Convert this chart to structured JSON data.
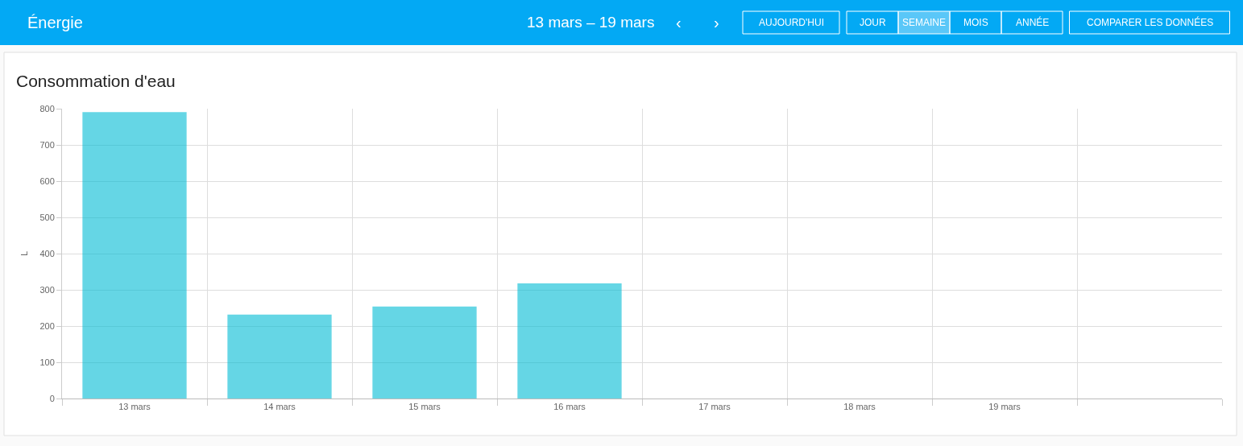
{
  "chart_data": {
    "type": "bar",
    "title": "Consommation d'eau",
    "ylabel": "L",
    "annotations": [
      "Énergie",
      "13 mars – 19 mars",
      "‹",
      "›",
      "AUJOURD'HUI",
      "JOUR",
      "SEMAINE",
      "MOIS",
      "ANNÉE",
      "COMPARER LES DONNÉES"
    ],
    "categories": [
      "13 mars",
      "14 mars",
      "15 mars",
      "16 mars",
      "17 mars",
      "18 mars",
      "19 mars",
      null
    ],
    "series": [
      {
        "color": "#00bcd4",
        "values": [
          789,
          230,
          252,
          316,
          null,
          null,
          null,
          null
        ]
      }
    ],
    "ylim": [
      0,
      800
    ],
    "yticks": [
      0,
      100,
      200,
      300,
      400,
      500,
      600,
      700,
      800
    ],
    "grid": true,
    "legend": false
  }
}
